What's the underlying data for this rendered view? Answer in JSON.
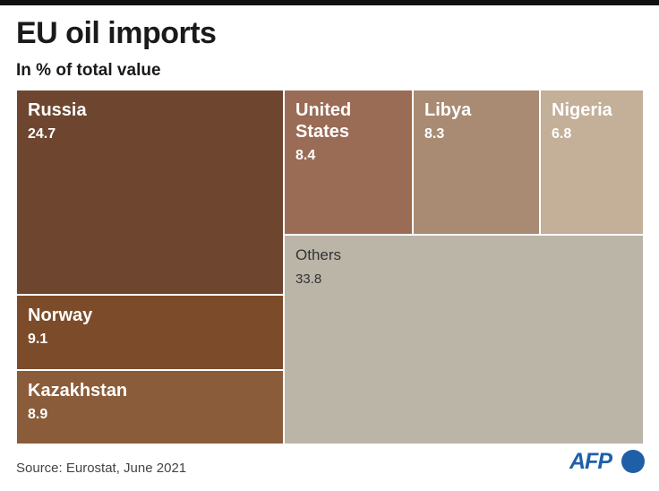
{
  "title": "EU oil imports",
  "subtitle": "In % of total value",
  "source": "Source: Eurostat, June 2021",
  "logo": {
    "text": "AFP",
    "icon": "afp-dot-icon",
    "color": "#1f5fa8"
  },
  "chart_data": {
    "type": "treemap",
    "title": "EU oil imports",
    "subtitle": "In % of total value",
    "unit": "%",
    "items": [
      {
        "name": "Russia",
        "value": "24.7",
        "color": "#6e4630"
      },
      {
        "name": "Norway",
        "value": "9.1",
        "color": "#7c4c2a"
      },
      {
        "name": "Kazakhstan",
        "value": "8.9",
        "color": "#8a5c3a"
      },
      {
        "name": "United\nStates",
        "value": "8.4",
        "color": "#9a6b55"
      },
      {
        "name": "Libya",
        "value": "8.3",
        "color": "#a88b72"
      },
      {
        "name": "Nigeria",
        "value": "6.8",
        "color": "#c4af98"
      },
      {
        "name": "Others",
        "value": "33.8",
        "color": "#bab5a7"
      }
    ]
  }
}
